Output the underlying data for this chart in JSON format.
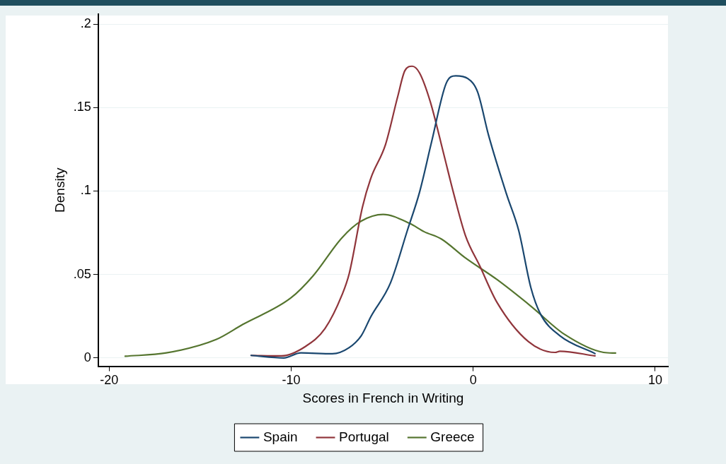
{
  "chart_data": {
    "type": "line",
    "xlabel": "Scores in French in Writing",
    "ylabel": "Density",
    "xlim": [
      -20.6,
      10.7
    ],
    "xticks": [
      -20,
      -10,
      0,
      10
    ],
    "ylim": [
      -0.005,
      0.206
    ],
    "yticks": [
      {
        "value": 0,
        "label": "0"
      },
      {
        "value": 0.05,
        "label": ".05"
      },
      {
        "value": 0.1,
        "label": ".1"
      },
      {
        "value": 0.15,
        "label": ".15"
      },
      {
        "value": 0.2,
        "label": ".2"
      }
    ],
    "grid": "y",
    "legend": "bottom",
    "marker": "none",
    "line_style": "solid",
    "series": [
      {
        "name": "Spain",
        "color": "#1a476f",
        "x": [
          -12.2,
          -10.41,
          -9.47,
          -7.74,
          -6.81,
          -6.15,
          -5.62,
          -4.55,
          -3.62,
          -2.95,
          -2.29,
          -1.49,
          -0.96,
          -0.29,
          0.24,
          0.84,
          1.84,
          2.5,
          3.17,
          3.7,
          4.76,
          6.69
        ],
        "values": [
          0.0015,
          0,
          0.003,
          0.0025,
          0.0062,
          0.0133,
          0.0248,
          0.0448,
          0.0763,
          0.0992,
          0.1293,
          0.1644,
          0.169,
          0.1673,
          0.1594,
          0.1336,
          0.0978,
          0.0763,
          0.042,
          0.0262,
          0.0133,
          0.0026
        ]
      },
      {
        "name": "Portugal",
        "color": "#90353b",
        "x": [
          -12.2,
          -10.54,
          -9.21,
          -8.14,
          -7.21,
          -6.81,
          -6.08,
          -5.62,
          -4.82,
          -4.15,
          -3.75,
          -3.35,
          -2.95,
          -2.36,
          -1.62,
          -1.09,
          -0.43,
          0.37,
          1.3,
          3.03,
          4.5,
          4.76,
          6.69
        ],
        "values": [
          0.0015,
          0.0012,
          0.0069,
          0.0176,
          0.0377,
          0.0506,
          0.0906,
          0.1078,
          0.1278,
          0.1565,
          0.1722,
          0.1748,
          0.1708,
          0.1536,
          0.1222,
          0.0992,
          0.0734,
          0.0549,
          0.0334,
          0.0098,
          0.0033,
          0.004,
          0.0012
        ]
      },
      {
        "name": "Greece",
        "color": "#55752f",
        "x": [
          -19.12,
          -16.86,
          -14.13,
          -12.67,
          -10.01,
          -8.81,
          -7.21,
          -6.15,
          -4.95,
          -3.49,
          -2.69,
          -1.76,
          -0.43,
          1.3,
          3.17,
          5.03,
          7.16,
          7.82
        ],
        "values": [
          0.001,
          0.003,
          0.011,
          0.02,
          0.036,
          0.049,
          0.072,
          0.082,
          0.086,
          0.0806,
          0.0756,
          0.0713,
          0.0599,
          0.047,
          0.031,
          0.014,
          0.0033,
          0.0029
        ]
      }
    ]
  }
}
